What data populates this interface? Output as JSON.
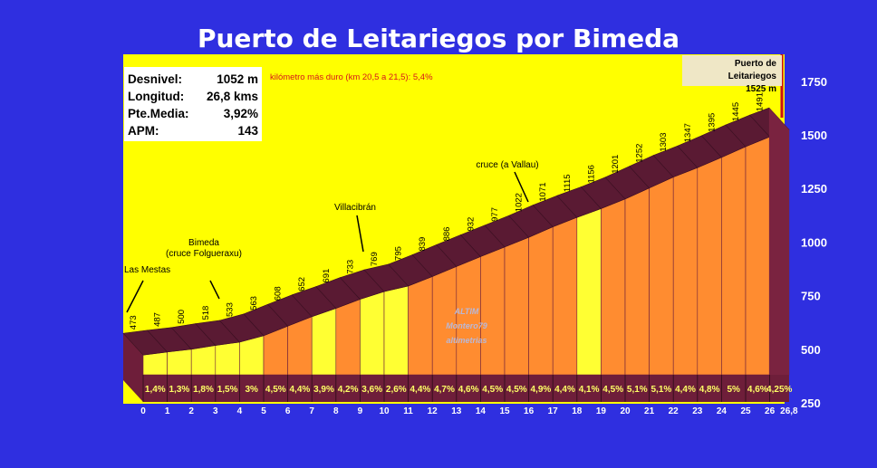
{
  "title": "Puerto de Leitariegos por Bimeda",
  "stats": [
    {
      "label": "Desnivel:",
      "value": "1052 m"
    },
    {
      "label": "Longitud:",
      "value": "26,8 kms"
    },
    {
      "label": "Pte.Media:",
      "value": "3,92%"
    },
    {
      "label": "APM:",
      "value": "143"
    }
  ],
  "hardest_km": "kilómetro más duro (km 20,5 a 21,5):  5,4%",
  "summit": {
    "name": "Puerto de Leitariegos",
    "altitude": "1525 m"
  },
  "watermark": [
    "ALTIM",
    "Montero79",
    "altimetrias"
  ],
  "colors": {
    "background": "#2f2fe0",
    "plot_bg": "#ffff00",
    "fill": "#ff8c30",
    "fill_alt": "#ffff33",
    "side": "#6e1e3a",
    "top": "#5a1a33"
  },
  "chart_data": {
    "type": "area",
    "title": "Puerto de Leitariegos por Bimeda",
    "xlabel": "",
    "ylabel": "",
    "ylim": [
      250,
      1750
    ],
    "y_ticks": [
      250,
      500,
      750,
      1000,
      1250,
      1500,
      1750
    ],
    "x_ticks": [
      "0",
      "1",
      "2",
      "3",
      "4",
      "5",
      "6",
      "7",
      "8",
      "9",
      "10",
      "11",
      "12",
      "13",
      "14",
      "15",
      "16",
      "17",
      "18",
      "19",
      "20",
      "21",
      "22",
      "23",
      "24",
      "25",
      "26",
      "26,8"
    ],
    "x_tick_values": [
      0,
      1,
      2,
      3,
      4,
      5,
      6,
      7,
      8,
      9,
      10,
      11,
      12,
      13,
      14,
      15,
      16,
      17,
      18,
      19,
      20,
      21,
      22,
      23,
      24,
      25,
      26,
      26.8
    ],
    "km": [
      0,
      1,
      2,
      3,
      4,
      5,
      6,
      7,
      8,
      9,
      10,
      11,
      12,
      13,
      14,
      15,
      16,
      17,
      18,
      19,
      20,
      21,
      22,
      23,
      24,
      25,
      26,
      26.8
    ],
    "altitudes": [
      473,
      487,
      500,
      518,
      533,
      563,
      608,
      652,
      691,
      733,
      769,
      795,
      839,
      886,
      932,
      977,
      1022,
      1071,
      1115,
      1156,
      1201,
      1252,
      1303,
      1347,
      1395,
      1445,
      1491,
      1525
    ],
    "gradients": [
      "1,4%",
      "1,3%",
      "1,8%",
      "1,5%",
      "3%",
      "4,5%",
      "4,4%",
      "3,9%",
      "4,2%",
      "3,6%",
      "2,6%",
      "4,4%",
      "4,7%",
      "4,6%",
      "4,5%",
      "4,5%",
      "4,9%",
      "4,4%",
      "4,1%",
      "4,5%",
      "5,1%",
      "5,1%",
      "4,4%",
      "4,8%",
      "5%",
      "4,6%",
      "4,25%"
    ],
    "segment_colors": [
      "yellow",
      "yellow",
      "yellow",
      "yellow",
      "yellow",
      "orange",
      "orange",
      "yellow",
      "orange",
      "yellow",
      "yellow",
      "orange",
      "orange",
      "orange",
      "orange",
      "orange",
      "orange",
      "orange",
      "yellow",
      "orange",
      "orange",
      "orange",
      "orange",
      "orange",
      "orange",
      "orange",
      "orange"
    ],
    "annotations": [
      {
        "text": "Las Mestas",
        "km": 0
      },
      {
        "text": "Bimeda\n(cruce Folgueraxu)",
        "km": 3.2
      },
      {
        "text": "Villacibrán",
        "km": 9
      },
      {
        "text": "cruce (a Vallau)",
        "km": 16.2
      }
    ]
  }
}
